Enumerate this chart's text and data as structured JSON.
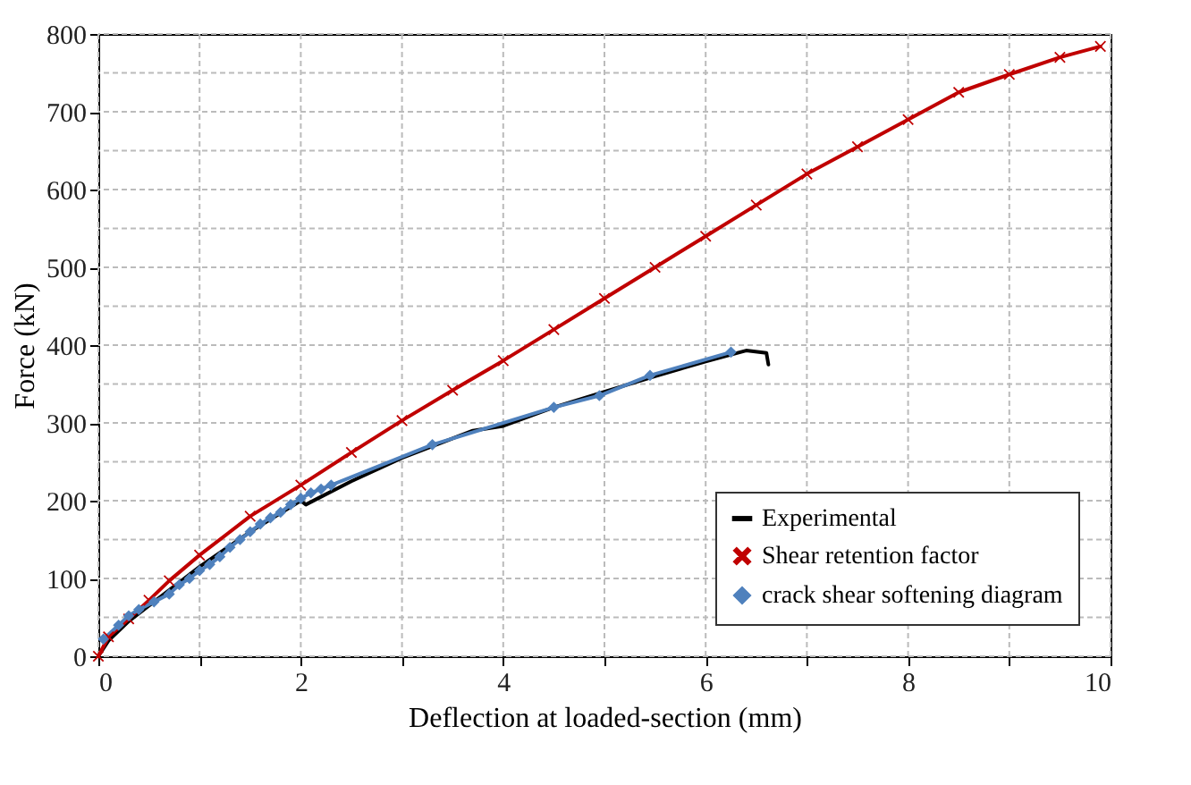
{
  "chart_data": {
    "type": "line",
    "xlabel": "Deflection at loaded-section (mm)",
    "ylabel": "Force (kN)",
    "xlim": [
      0,
      10
    ],
    "ylim": [
      0,
      800
    ],
    "xticks": [
      0,
      {
        "value": 1,
        "label": null
      },
      2,
      {
        "value": 3,
        "label": null
      },
      4,
      {
        "value": 5,
        "label": null
      },
      6,
      {
        "value": 7,
        "label": null
      },
      8,
      {
        "value": 9,
        "label": null
      },
      10
    ],
    "yticks": [
      0,
      {
        "value": 50,
        "label": null
      },
      100,
      {
        "value": 150,
        "label": null
      },
      200,
      {
        "value": 250,
        "label": null
      },
      300,
      {
        "value": 350,
        "label": null
      },
      400,
      {
        "value": 450,
        "label": null
      },
      500,
      {
        "value": 550,
        "label": null
      },
      600,
      {
        "value": 650,
        "label": null
      },
      700,
      {
        "value": 750,
        "label": null
      },
      800
    ],
    "grid": true,
    "legend": "bottom right",
    "series": [
      {
        "name": "Experimental",
        "color": "#000000",
        "marker": "none",
        "x": [
          0,
          0.1,
          0.3,
          0.5,
          0.8,
          1,
          1.5,
          2,
          2.05,
          2.2,
          2.5,
          3,
          3.5,
          3.7,
          4,
          4.5,
          5,
          5.5,
          6,
          6.4,
          6.6,
          6.62
        ],
        "values": [
          0,
          20,
          45,
          65,
          95,
          115,
          160,
          200,
          195,
          205,
          225,
          255,
          280,
          290,
          296,
          320,
          340,
          360,
          379,
          393,
          390,
          375
        ]
      },
      {
        "name": "Shear retention factor",
        "color": "#c00000",
        "marker": "cross",
        "x": [
          0,
          0.1,
          0.3,
          0.5,
          0.7,
          1,
          1.5,
          2,
          2.5,
          3,
          3.5,
          4,
          4.5,
          5,
          5.5,
          6,
          6.5,
          7,
          7.5,
          8,
          8.5,
          9,
          9.5,
          9.9
        ],
        "values": [
          0,
          25,
          48,
          72,
          97,
          130,
          180,
          220,
          262,
          303,
          342,
          380,
          420,
          460,
          500,
          540,
          580,
          620,
          655,
          690,
          725,
          748,
          770,
          784
        ]
      },
      {
        "name": "crack shear softening diagram",
        "color": "#4f81bd",
        "marker": "diamond",
        "x": [
          0.05,
          0.2,
          0.3,
          0.4,
          0.55,
          0.7,
          0.8,
          0.9,
          1,
          1.1,
          1.2,
          1.3,
          1.4,
          1.5,
          1.6,
          1.7,
          1.8,
          1.9,
          2,
          2.1,
          2.2,
          2.3,
          3.3,
          4.5,
          4.95,
          5.45,
          6.25
        ],
        "values": [
          22,
          40,
          52,
          60,
          70,
          80,
          92,
          100,
          110,
          118,
          128,
          140,
          150,
          160,
          170,
          178,
          185,
          195,
          203,
          210,
          215,
          220,
          272,
          320,
          335,
          361,
          391
        ]
      }
    ]
  }
}
